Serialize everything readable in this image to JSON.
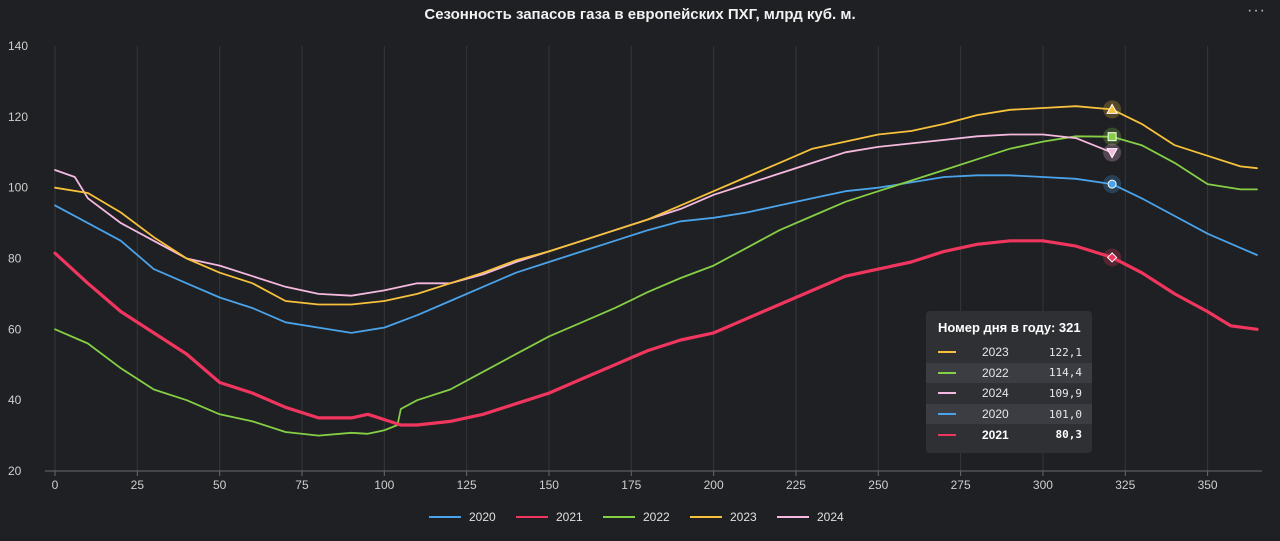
{
  "chart_data": {
    "type": "line",
    "title": "Сезонность запасов газа в европейских ПХГ, млрд куб. м.",
    "xlabel": "",
    "ylabel": "",
    "xlim": [
      0,
      365
    ],
    "ylim": [
      20,
      140
    ],
    "x_ticks": [
      0,
      25,
      50,
      75,
      100,
      125,
      150,
      175,
      200,
      225,
      250,
      275,
      300,
      325,
      350
    ],
    "y_ticks": [
      20,
      40,
      60,
      80,
      100,
      120,
      140
    ],
    "grid": "vertical",
    "legend": "bottom-center",
    "series": [
      {
        "name": "2020",
        "color": "#4aa3ea",
        "points": [
          [
            0,
            95
          ],
          [
            10,
            90
          ],
          [
            20,
            85
          ],
          [
            30,
            77
          ],
          [
            40,
            73
          ],
          [
            50,
            69
          ],
          [
            60,
            66
          ],
          [
            70,
            62
          ],
          [
            80,
            60.5
          ],
          [
            90,
            59
          ],
          [
            100,
            60.5
          ],
          [
            110,
            64
          ],
          [
            120,
            68
          ],
          [
            130,
            72
          ],
          [
            140,
            76
          ],
          [
            150,
            79
          ],
          [
            160,
            82
          ],
          [
            170,
            85
          ],
          [
            180,
            88
          ],
          [
            190,
            90.5
          ],
          [
            200,
            91.5
          ],
          [
            210,
            93
          ],
          [
            220,
            95
          ],
          [
            230,
            97
          ],
          [
            240,
            99
          ],
          [
            250,
            100
          ],
          [
            260,
            101.5
          ],
          [
            270,
            103
          ],
          [
            280,
            103.5
          ],
          [
            290,
            103.5
          ],
          [
            300,
            103
          ],
          [
            310,
            102.5
          ],
          [
            321,
            101
          ],
          [
            330,
            97
          ],
          [
            340,
            92
          ],
          [
            350,
            87
          ],
          [
            360,
            83
          ],
          [
            365,
            81
          ]
        ],
        "marker": "circle"
      },
      {
        "name": "2021",
        "color": "#f0365e",
        "bold": true,
        "points": [
          [
            0,
            81.5
          ],
          [
            10,
            73
          ],
          [
            20,
            65
          ],
          [
            30,
            59
          ],
          [
            40,
            53
          ],
          [
            50,
            45
          ],
          [
            60,
            42
          ],
          [
            70,
            38
          ],
          [
            80,
            35
          ],
          [
            90,
            35
          ],
          [
            95,
            36
          ],
          [
            100,
            34.5
          ],
          [
            105,
            33
          ],
          [
            110,
            33
          ],
          [
            120,
            34
          ],
          [
            130,
            36
          ],
          [
            140,
            39
          ],
          [
            150,
            42
          ],
          [
            160,
            46
          ],
          [
            170,
            50
          ],
          [
            180,
            54
          ],
          [
            190,
            57
          ],
          [
            200,
            59
          ],
          [
            210,
            63
          ],
          [
            220,
            67
          ],
          [
            230,
            71
          ],
          [
            240,
            75
          ],
          [
            250,
            77
          ],
          [
            260,
            79
          ],
          [
            270,
            82
          ],
          [
            280,
            84
          ],
          [
            290,
            85
          ],
          [
            300,
            85
          ],
          [
            310,
            83.5
          ],
          [
            321,
            80.3
          ],
          [
            330,
            76
          ],
          [
            340,
            70
          ],
          [
            350,
            65
          ],
          [
            357,
            61
          ],
          [
            365,
            60
          ]
        ],
        "marker": "diamond"
      },
      {
        "name": "2022",
        "color": "#85cf45",
        "points": [
          [
            0,
            60
          ],
          [
            10,
            56
          ],
          [
            20,
            49
          ],
          [
            30,
            43
          ],
          [
            40,
            40
          ],
          [
            50,
            36
          ],
          [
            60,
            34
          ],
          [
            70,
            31
          ],
          [
            80,
            30
          ],
          [
            90,
            30.8
          ],
          [
            95,
            30.5
          ],
          [
            100,
            31.5
          ],
          [
            104,
            33
          ],
          [
            105,
            37.5
          ],
          [
            110,
            40
          ],
          [
            120,
            43
          ],
          [
            130,
            48
          ],
          [
            140,
            53
          ],
          [
            150,
            58
          ],
          [
            160,
            62
          ],
          [
            170,
            66
          ],
          [
            180,
            70.5
          ],
          [
            190,
            74.5
          ],
          [
            200,
            78
          ],
          [
            210,
            83
          ],
          [
            220,
            88
          ],
          [
            230,
            92
          ],
          [
            240,
            96
          ],
          [
            250,
            99
          ],
          [
            260,
            102
          ],
          [
            270,
            105
          ],
          [
            280,
            108
          ],
          [
            290,
            111
          ],
          [
            300,
            113
          ],
          [
            310,
            114.5
          ],
          [
            321,
            114.4
          ],
          [
            330,
            112
          ],
          [
            340,
            107
          ],
          [
            350,
            101
          ],
          [
            360,
            99.5
          ],
          [
            365,
            99.5
          ]
        ],
        "marker": "square"
      },
      {
        "name": "2023",
        "color": "#f7c13c",
        "points": [
          [
            0,
            100
          ],
          [
            10,
            98.5
          ],
          [
            20,
            93
          ],
          [
            30,
            86
          ],
          [
            40,
            80
          ],
          [
            50,
            76
          ],
          [
            60,
            73
          ],
          [
            70,
            68
          ],
          [
            80,
            67
          ],
          [
            90,
            67
          ],
          [
            100,
            68
          ],
          [
            110,
            70
          ],
          [
            120,
            73
          ],
          [
            130,
            76
          ],
          [
            140,
            79.5
          ],
          [
            150,
            82
          ],
          [
            160,
            85
          ],
          [
            170,
            88
          ],
          [
            180,
            91
          ],
          [
            190,
            95
          ],
          [
            200,
            99
          ],
          [
            210,
            103
          ],
          [
            220,
            107
          ],
          [
            230,
            111
          ],
          [
            240,
            113
          ],
          [
            250,
            115
          ],
          [
            260,
            116
          ],
          [
            270,
            118
          ],
          [
            280,
            120.5
          ],
          [
            290,
            122
          ],
          [
            300,
            122.5
          ],
          [
            310,
            123
          ],
          [
            321,
            122.1
          ],
          [
            330,
            118
          ],
          [
            340,
            112
          ],
          [
            350,
            109
          ],
          [
            360,
            106
          ],
          [
            365,
            105.5
          ]
        ],
        "marker": "triangle-up"
      },
      {
        "name": "2024",
        "color": "#f5b9df",
        "points": [
          [
            0,
            105
          ],
          [
            6,
            103
          ],
          [
            10,
            97
          ],
          [
            20,
            90
          ],
          [
            30,
            85
          ],
          [
            40,
            80
          ],
          [
            50,
            78
          ],
          [
            60,
            75
          ],
          [
            70,
            72
          ],
          [
            80,
            70
          ],
          [
            90,
            69.5
          ],
          [
            100,
            71
          ],
          [
            110,
            73
          ],
          [
            120,
            73
          ],
          [
            130,
            75.5
          ],
          [
            140,
            79
          ],
          [
            150,
            82
          ],
          [
            160,
            85
          ],
          [
            170,
            88
          ],
          [
            180,
            91
          ],
          [
            190,
            94
          ],
          [
            200,
            98
          ],
          [
            210,
            101
          ],
          [
            220,
            104
          ],
          [
            230,
            107
          ],
          [
            240,
            110
          ],
          [
            250,
            111.5
          ],
          [
            260,
            112.5
          ],
          [
            270,
            113.5
          ],
          [
            280,
            114.5
          ],
          [
            290,
            115
          ],
          [
            300,
            115
          ],
          [
            310,
            114
          ],
          [
            321,
            109.9
          ]
        ],
        "marker": "triangle-down"
      }
    ],
    "tooltip": {
      "header": "Номер дня в году: 321",
      "day": 321,
      "rows": [
        {
          "name": "2023",
          "value": "122,1",
          "color": "#f7c13c"
        },
        {
          "name": "2022",
          "value": "114,4",
          "color": "#85cf45"
        },
        {
          "name": "2024",
          "value": "109,9",
          "color": "#f5b9df"
        },
        {
          "name": "2020",
          "value": "101,0",
          "color": "#4aa3ea"
        },
        {
          "name": "2021",
          "value": "80,3",
          "color": "#f0365e",
          "bold": true
        }
      ]
    }
  },
  "ui": {
    "menu_icon": "more-horizontal-icon",
    "menu_glyph": "···"
  }
}
